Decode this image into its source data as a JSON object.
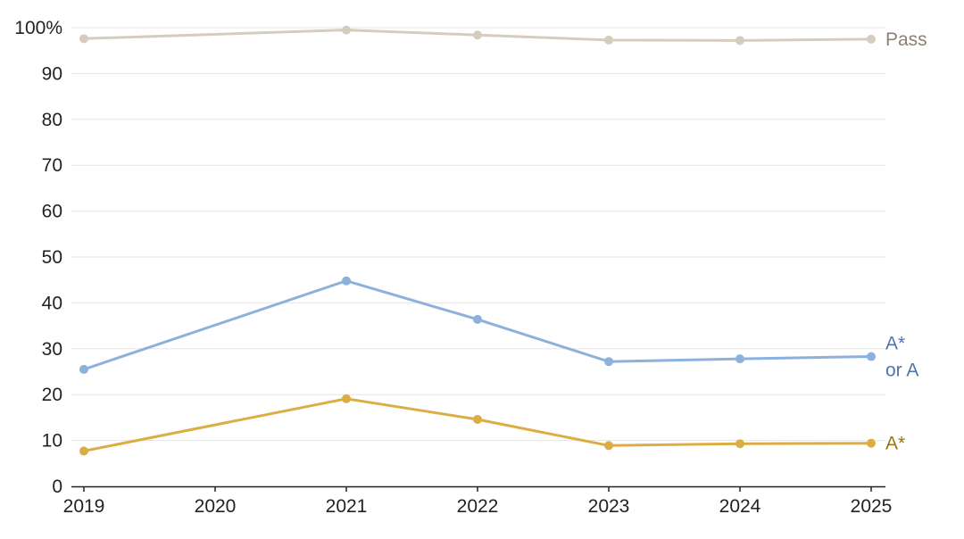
{
  "chart_data": {
    "type": "line",
    "title": "",
    "xlabel": "",
    "ylabel": "",
    "x": [
      2019,
      2020,
      2021,
      2022,
      2023,
      2024,
      2025
    ],
    "ylim": [
      0,
      100
    ],
    "y_ticks": [
      0,
      10,
      20,
      30,
      40,
      50,
      60,
      70,
      80,
      90,
      100
    ],
    "y_tick_labels": [
      "0",
      "10",
      "20",
      "30",
      "40",
      "50",
      "60",
      "70",
      "80",
      "90",
      "100%"
    ],
    "x_tick_labels": [
      "2019",
      "2020",
      "2021",
      "2022",
      "2023",
      "2024",
      "2025"
    ],
    "grid": true,
    "series": [
      {
        "name": "Pass",
        "label_lines": [
          "Pass"
        ],
        "color": "#d6ccbe",
        "label_color": "#8a8170",
        "points": [
          [
            2019,
            97.6
          ],
          [
            2021,
            99.5
          ],
          [
            2022,
            98.4
          ],
          [
            2023,
            97.3
          ],
          [
            2024,
            97.2
          ],
          [
            2025,
            97.5
          ]
        ]
      },
      {
        "name": "A* or A",
        "label_lines": [
          "A*",
          "or A"
        ],
        "color": "#8db0dd",
        "label_color": "#4f76a8",
        "points": [
          [
            2019,
            25.5
          ],
          [
            2021,
            44.8
          ],
          [
            2022,
            36.4
          ],
          [
            2023,
            27.2
          ],
          [
            2024,
            27.8
          ],
          [
            2025,
            28.3
          ]
        ]
      },
      {
        "name": "A*",
        "label_lines": [
          "A*"
        ],
        "color": "#dcad45",
        "label_color": "#9a7419",
        "points": [
          [
            2019,
            7.7
          ],
          [
            2021,
            19.1
          ],
          [
            2022,
            14.6
          ],
          [
            2023,
            8.9
          ],
          [
            2024,
            9.3
          ],
          [
            2025,
            9.4
          ]
        ]
      }
    ]
  }
}
